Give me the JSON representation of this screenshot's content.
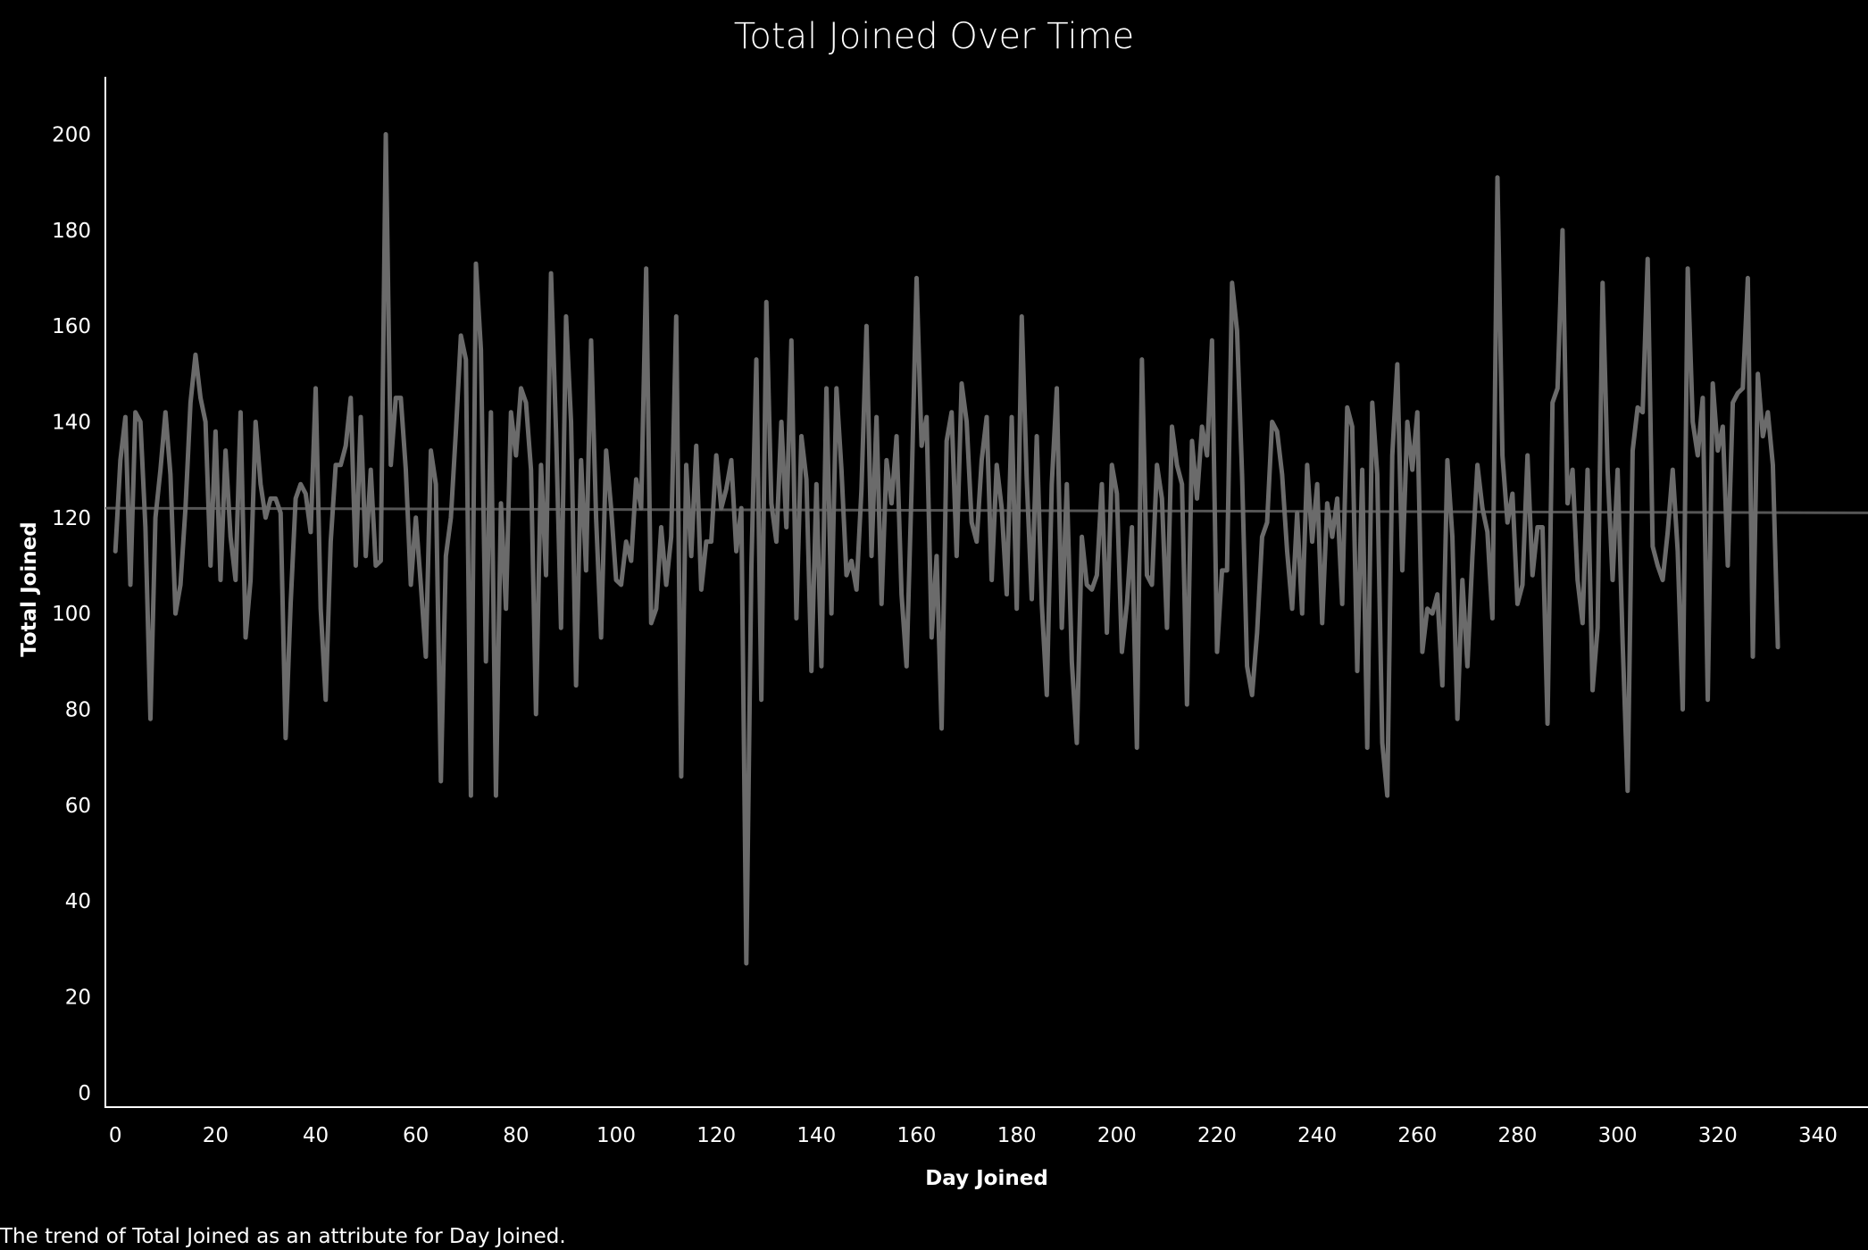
{
  "colors": {
    "background": "#000000",
    "text": "#ffffff",
    "axis": "#ffffff",
    "series_line": "#6b6b6b",
    "reference_line": "#555555"
  },
  "caption": "The trend of Total Joined as an attribute for Day Joined.",
  "chart_data": {
    "type": "line",
    "title": "Total Joined Over Time",
    "xlabel": "Day Joined",
    "ylabel": "Total Joined",
    "xlim": [
      -2,
      350
    ],
    "ylim": [
      -3,
      212
    ],
    "xticks": [
      0,
      20,
      40,
      60,
      80,
      100,
      120,
      140,
      160,
      180,
      200,
      220,
      240,
      260,
      280,
      300,
      320,
      340
    ],
    "yticks": [
      0,
      20,
      40,
      60,
      80,
      100,
      120,
      140,
      160,
      180,
      200
    ],
    "grid": false,
    "reference_line": {
      "type": "trend",
      "y_start": 122,
      "y_end": 121
    },
    "series": [
      {
        "values": [
          113,
          132,
          141,
          106,
          142,
          140,
          118,
          78,
          120,
          130,
          142,
          129,
          100,
          106,
          122,
          144,
          154,
          145,
          140,
          110,
          138,
          107,
          134,
          116,
          107,
          142,
          95,
          107,
          140,
          127,
          120,
          124,
          124,
          121,
          74,
          102,
          124,
          127,
          125,
          117,
          147,
          101,
          82,
          115,
          131,
          131,
          135,
          145,
          110,
          141,
          112,
          130,
          110,
          111,
          200,
          131,
          145,
          145,
          130,
          106,
          120,
          106,
          91,
          134,
          127,
          65,
          112,
          120,
          138,
          158,
          153,
          62,
          173,
          155,
          90,
          142,
          62,
          123,
          101,
          142,
          133,
          147,
          144,
          130,
          79,
          131,
          108,
          171,
          138,
          97,
          162,
          140,
          85,
          132,
          109,
          157,
          120,
          95,
          134,
          122,
          107,
          106,
          115,
          111,
          128,
          122,
          172,
          98,
          101,
          118,
          106,
          116,
          162,
          66,
          131,
          112,
          135,
          105,
          115,
          115,
          133,
          122,
          126,
          132,
          113,
          122,
          27,
          109,
          153,
          82,
          165,
          123,
          115,
          140,
          118,
          157,
          99,
          137,
          128,
          88,
          127,
          89,
          147,
          100,
          147,
          130,
          108,
          111,
          105,
          126,
          160,
          112,
          141,
          102,
          132,
          123,
          137,
          104,
          89,
          126,
          170,
          135,
          141,
          95,
          112,
          76,
          136,
          142,
          112,
          148,
          140,
          119,
          115,
          132,
          141,
          107,
          131,
          122,
          104,
          141,
          101,
          162,
          128,
          103,
          137,
          102,
          83,
          127,
          147,
          97,
          127,
          90,
          73,
          116,
          106,
          105,
          108,
          127,
          96,
          131,
          125,
          92,
          102,
          118,
          72,
          153,
          108,
          106,
          131,
          124,
          97,
          139,
          131,
          127,
          81,
          136,
          124,
          139,
          133,
          157,
          92,
          109,
          109,
          169,
          159,
          129,
          89,
          83,
          96,
          116,
          119,
          140,
          138,
          129,
          113,
          101,
          121,
          100,
          131,
          115,
          127,
          98,
          123,
          116,
          124,
          102,
          143,
          139,
          88,
          130,
          72,
          144,
          129,
          73,
          62,
          133,
          152,
          109,
          140,
          130,
          142,
          92,
          101,
          100,
          104,
          85,
          132,
          116,
          78,
          107,
          89,
          112,
          131,
          122,
          117,
          99,
          191,
          133,
          119,
          125,
          102,
          106,
          133,
          108,
          118,
          118,
          77,
          144,
          147,
          180,
          123,
          130,
          107,
          98,
          130,
          84,
          97,
          169,
          130,
          107,
          130,
          94,
          63,
          134,
          143,
          142,
          174,
          114,
          110,
          107,
          117,
          130,
          113,
          80,
          172,
          140,
          133,
          145,
          82,
          148,
          134,
          139,
          110,
          144,
          146,
          147,
          170,
          91,
          150,
          137,
          142,
          131,
          93
        ]
      }
    ]
  }
}
